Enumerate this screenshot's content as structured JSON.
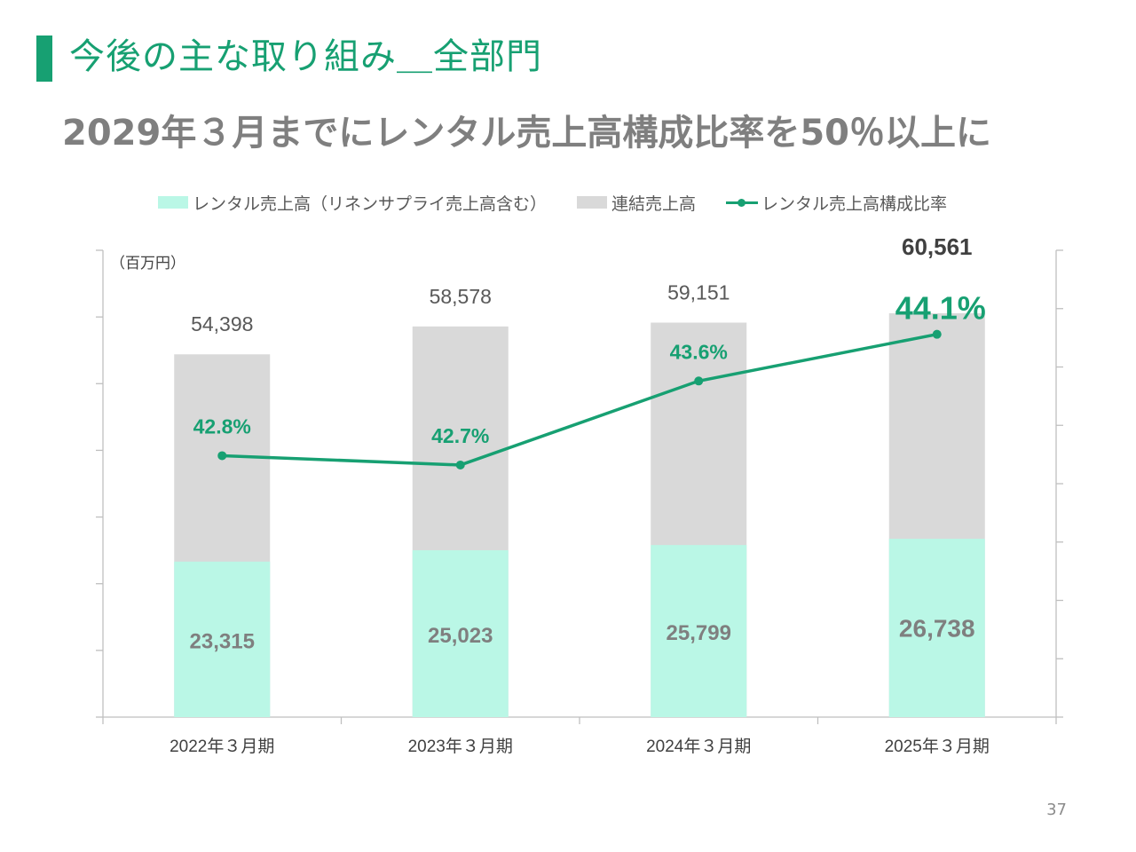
{
  "page": {
    "title": "今後の主な取り組み＿全部門",
    "subtitle": "2029年３月までにレンタル売上高構成比率を50％以上に",
    "page_number": "37"
  },
  "legend": {
    "rental_label": "レンタル売上高（リネンサプライ売上高含む）",
    "consolidated_label": "連結売上高",
    "ratio_label": "レンタル売上高構成比率"
  },
  "colors": {
    "accent": "#17A072",
    "rental_bar": "#BAF7E6",
    "consolidated_bar": "#D9D9D9",
    "text_gray": "#7F7F7F",
    "axis": "#BFBFBF"
  },
  "chart_data": {
    "type": "bar",
    "stacked": true,
    "unit_label": "（百万円）",
    "categories": [
      "2022年３月期",
      "2023年３月期",
      "2024年３月期",
      "2025年３月期"
    ],
    "series": [
      {
        "name": "レンタル売上高（リネンサプライ売上高含む）",
        "type": "bar",
        "values": [
          23315,
          25023,
          25799,
          26738
        ],
        "labels": [
          "23,315",
          "25,023",
          "25,799",
          "26,738"
        ]
      },
      {
        "name": "連結売上高",
        "type": "bar",
        "values": [
          54398,
          58578,
          59151,
          60561
        ],
        "labels": [
          "54,398",
          "58,578",
          "59,151",
          "60,561"
        ]
      },
      {
        "name": "レンタル売上高構成比率",
        "type": "line",
        "axis": "right",
        "values": [
          42.8,
          42.7,
          43.6,
          44.1
        ],
        "labels": [
          "42.8%",
          "42.7%",
          "43.6%",
          "44.1%"
        ]
      }
    ],
    "ylim_left": [
      0,
      70000
    ],
    "ylim_right": [
      40.0,
      45.0
    ],
    "grid": false,
    "legend_position": "top"
  }
}
